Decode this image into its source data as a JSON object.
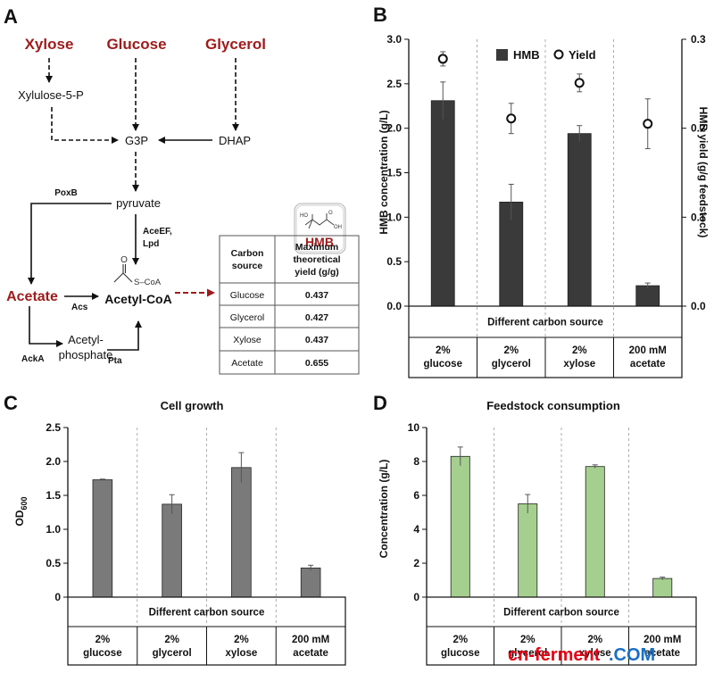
{
  "panel_labels": [
    "A",
    "B",
    "C",
    "D"
  ],
  "pathway": {
    "substrates": [
      "Xylose",
      "Glucose",
      "Glycerol",
      "Acetate"
    ],
    "intermediates": [
      "Xylulose-5-P",
      "G3P",
      "DHAP",
      "pyruvate",
      "Acetyl-CoA",
      "Acetyl-",
      "phosphate"
    ],
    "enzymes": [
      "PoxB",
      "AceEF,",
      "Lpd",
      "Acs",
      "AckA",
      "Pta"
    ],
    "acetyl_group": {
      "carbonyl": "O",
      "thioester": "S–CoA"
    },
    "product": {
      "label": "HMB",
      "atom_ho": "HO",
      "atom_o": "O",
      "atom_oh": "OH"
    },
    "yield_table": {
      "header_col1": [
        "Carbon",
        "source"
      ],
      "header_col2": [
        "Maximum",
        "theoretical",
        "yield (g/g)"
      ],
      "rows": [
        {
          "source": "Glucose",
          "yield": "0.437"
        },
        {
          "source": "Glycerol",
          "yield": "0.427"
        },
        {
          "source": "Xylose",
          "yield": "0.437"
        },
        {
          "source": "Acetate",
          "yield": "0.655"
        }
      ]
    }
  },
  "categories": [
    {
      "l1": "2%",
      "l2": "glucose"
    },
    {
      "l1": "2%",
      "l2": "glycerol"
    },
    {
      "l1": "2%",
      "l2": "xylose"
    },
    {
      "l1": "200 mM",
      "l2": "acetate"
    }
  ],
  "group_label": "Different carbon source",
  "chart_data": [
    {
      "panel": "B",
      "type": "bar",
      "title": "",
      "xlabel": "Different carbon source",
      "ylabel": "HMB concentration (g/L)",
      "ylabel2": "HMB yield (g/g feedstock)",
      "ylim": [
        0,
        3.0
      ],
      "ylim2": [
        0,
        0.3
      ],
      "yticks": [
        "0.0",
        "0.5",
        "1.0",
        "1.5",
        "2.0",
        "2.5",
        "3.0"
      ],
      "yticks2": [
        "0.0",
        "0.1",
        "0.2",
        "0.3"
      ],
      "color": "#3a3a3a",
      "legend": [
        "HMB",
        "Yield"
      ],
      "legend_position": "top-right",
      "series": [
        {
          "name": "HMB",
          "values": [
            2.31,
            1.17,
            1.94,
            0.23
          ],
          "errors": [
            0.21,
            0.2,
            0.09,
            0.03
          ]
        },
        {
          "name": "Yield",
          "axis": "right",
          "values": [
            0.278,
            0.211,
            0.251,
            0.205
          ],
          "errors": [
            0.008,
            0.017,
            0.01,
            0.028
          ]
        }
      ]
    },
    {
      "panel": "C",
      "type": "bar",
      "title": "Cell growth",
      "xlabel": "Different carbon source",
      "ylabel_main": "OD",
      "ylabel_sub": "600",
      "ylim": [
        0,
        2.5
      ],
      "yticks": [
        "0",
        "0.5",
        "1.0",
        "1.5",
        "2.0",
        "2.5"
      ],
      "color": "#7a7a7a",
      "series": [
        {
          "name": "OD600",
          "values": [
            1.73,
            1.37,
            1.91,
            0.43
          ],
          "errors": [
            0.01,
            0.14,
            0.22,
            0.04
          ]
        }
      ]
    },
    {
      "panel": "D",
      "type": "bar",
      "title": "Feedstock consumption",
      "xlabel": "Different carbon source",
      "ylabel": "Concentration (g/L)",
      "ylim": [
        0,
        10
      ],
      "yticks": [
        "0",
        "2",
        "4",
        "6",
        "8",
        "10"
      ],
      "color": "#a5cf8e",
      "series": [
        {
          "name": "Consumption",
          "values": [
            8.3,
            5.5,
            7.7,
            1.1
          ],
          "errors": [
            0.55,
            0.55,
            0.1,
            0.08
          ]
        }
      ]
    }
  ],
  "watermark": {
    "part1": "cn-ferment",
    "part2": ".COM"
  }
}
